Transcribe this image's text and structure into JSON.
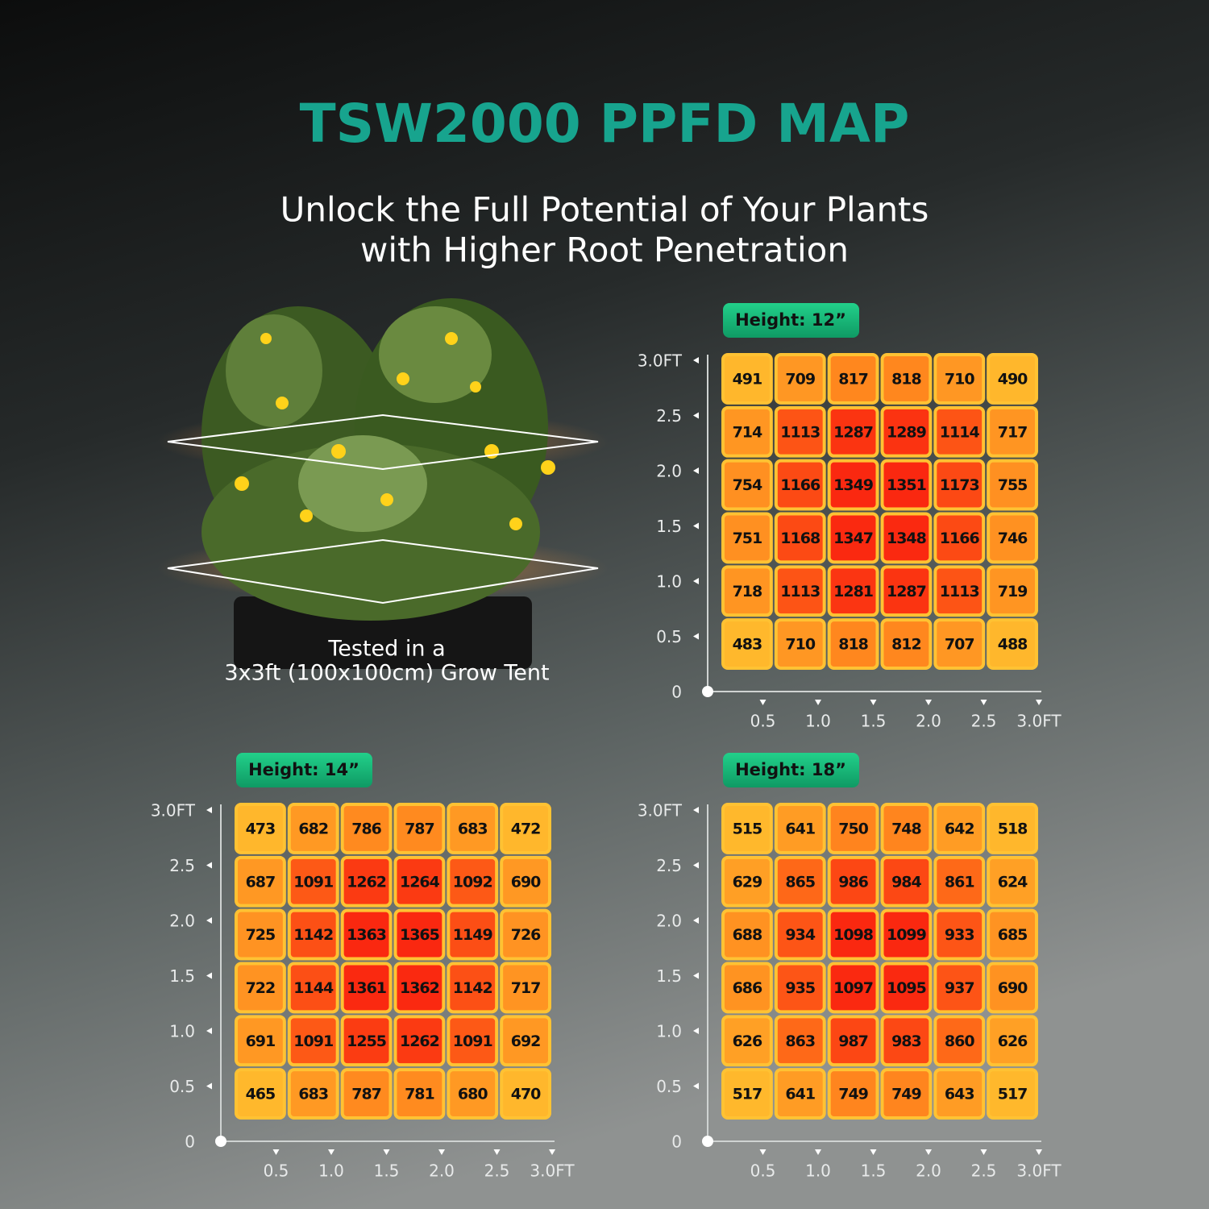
{
  "header": {
    "title": "TSW2000 PPFD MAP",
    "subtitle": [
      "Unlock the Full Potential of Your Plants",
      "with Higher Root Penetration"
    ],
    "caption": [
      "Tested in a",
      "3x3ft (100x100cm) Grow Tent"
    ]
  },
  "chart_data": [
    {
      "type": "heatmap",
      "title": "Height: 12”",
      "values": [
        [
          491,
          709,
          817,
          818,
          710,
          490
        ],
        [
          714,
          1113,
          1287,
          1289,
          1114,
          717
        ],
        [
          754,
          1166,
          1349,
          1351,
          1173,
          755
        ],
        [
          751,
          1168,
          1347,
          1348,
          1166,
          746
        ],
        [
          718,
          1113,
          1281,
          1287,
          1113,
          719
        ],
        [
          483,
          710,
          818,
          812,
          707,
          488
        ]
      ],
      "xlim": [
        0,
        3
      ],
      "ylim": [
        0,
        3
      ],
      "xticks": [
        0.5,
        {
          "value": 1,
          "label": "1.0"
        },
        1.5,
        {
          "value": 2,
          "label": "2.0"
        },
        2.5,
        {
          "value": 3,
          "label": "3.0FT"
        }
      ],
      "yticks": [
        0,
        0.5,
        {
          "value": 1,
          "label": "1.0"
        },
        1.5,
        {
          "value": 2,
          "label": "2.0"
        },
        2.5,
        {
          "value": 3,
          "label": "3.0FT"
        }
      ]
    },
    {
      "type": "heatmap",
      "title": "Height: 14”",
      "values": [
        [
          473,
          682,
          786,
          787,
          683,
          472
        ],
        [
          687,
          1091,
          1262,
          1264,
          1092,
          690
        ],
        [
          725,
          1142,
          1363,
          1365,
          1149,
          726
        ],
        [
          722,
          1144,
          1361,
          1362,
          1142,
          717
        ],
        [
          691,
          1091,
          1255,
          1262,
          1091,
          692
        ],
        [
          465,
          683,
          787,
          781,
          680,
          470
        ]
      ],
      "xlim": [
        0,
        3
      ],
      "ylim": [
        0,
        3
      ],
      "xticks": [
        0.5,
        {
          "value": 1,
          "label": "1.0"
        },
        1.5,
        {
          "value": 2,
          "label": "2.0"
        },
        2.5,
        {
          "value": 3,
          "label": "3.0FT"
        }
      ],
      "yticks": [
        0,
        0.5,
        {
          "value": 1,
          "label": "1.0"
        },
        1.5,
        {
          "value": 2,
          "label": "2.0"
        },
        2.5,
        {
          "value": 3,
          "label": "3.0FT"
        }
      ]
    },
    {
      "type": "heatmap",
      "title": "Height: 18”",
      "values": [
        [
          515,
          641,
          750,
          748,
          642,
          518
        ],
        [
          629,
          865,
          986,
          984,
          861,
          624
        ],
        [
          688,
          934,
          1098,
          1099,
          933,
          685
        ],
        [
          686,
          935,
          1097,
          1095,
          937,
          690
        ],
        [
          626,
          863,
          987,
          983,
          860,
          626
        ],
        [
          517,
          641,
          749,
          749,
          643,
          517
        ]
      ],
      "xlim": [
        0,
        3
      ],
      "ylim": [
        0,
        3
      ],
      "xticks": [
        0.5,
        {
          "value": 1,
          "label": "1.0"
        },
        1.5,
        {
          "value": 2,
          "label": "2.0"
        },
        2.5,
        {
          "value": 3,
          "label": "3.0FT"
        }
      ],
      "yticks": [
        0,
        0.5,
        {
          "value": 1,
          "label": "1.0"
        },
        1.5,
        {
          "value": 2,
          "label": "2.0"
        },
        2.5,
        {
          "value": 3,
          "label": "3.0FT"
        }
      ]
    }
  ]
}
